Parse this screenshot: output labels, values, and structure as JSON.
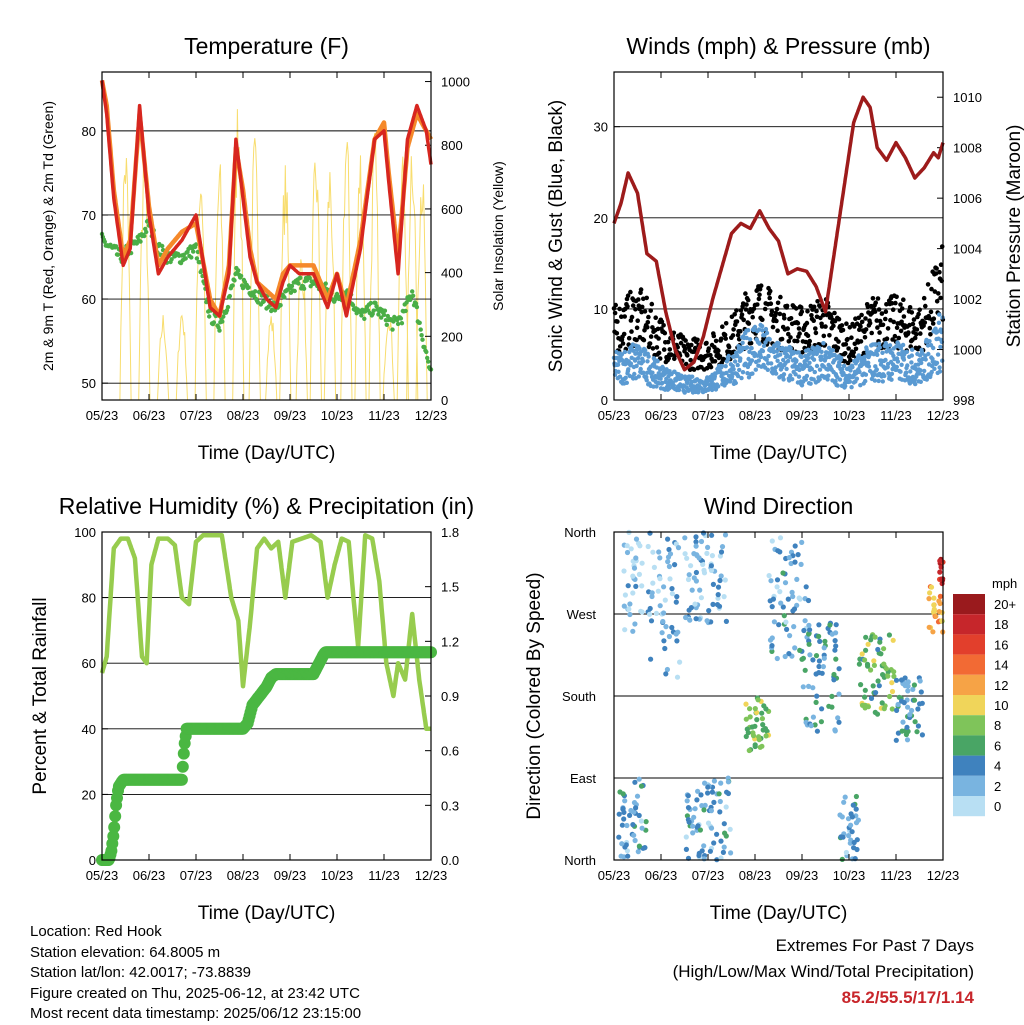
{
  "chart_data": [
    {
      "type": "line",
      "title": "Temperature (F)",
      "xlabel": "Time (Day/UTC)",
      "ylabel": "2m & 9m T (Red, Orange) & 2m Td (Green)",
      "y2label": "Solar Insolation (Yellow)",
      "ylim": [
        48,
        87
      ],
      "y2lim": [
        0,
        1030
      ],
      "xticks": [
        "05/23",
        "06/23",
        "07/23",
        "08/23",
        "09/23",
        "10/23",
        "11/23",
        "12/23"
      ],
      "yticks": [
        50,
        60,
        70,
        80
      ],
      "y2ticks": [
        0,
        200,
        400,
        600,
        800,
        1000
      ],
      "grid": true,
      "colors": {
        "t2m": "#d7261f",
        "t9m": "#f5892a",
        "td2m": "#4aae46",
        "solar": "#f8dd6e"
      },
      "series": [
        {
          "name": "2m T",
          "x": [
            0,
            0.1,
            0.25,
            0.45,
            0.6,
            0.8,
            1.0,
            1.2,
            1.4,
            1.7,
            2.0,
            2.3,
            2.5,
            2.7,
            2.85,
            3.0,
            3.15,
            3.3,
            3.5,
            3.7,
            3.85,
            4.0,
            4.2,
            4.5,
            4.8,
            5.0,
            5.2,
            5.5,
            5.8,
            6.0,
            6.1,
            6.3,
            6.5,
            6.7,
            6.9,
            7.0
          ],
          "values": [
            86,
            82,
            72,
            64,
            66,
            83,
            70,
            63,
            65,
            67,
            70,
            59,
            58,
            63,
            79,
            72,
            65,
            62,
            60,
            59,
            62,
            64,
            63,
            63,
            59,
            63,
            58,
            66,
            79,
            80,
            74,
            63,
            79,
            83,
            80,
            76
          ]
        },
        {
          "name": "9m T",
          "x": [
            0,
            0.1,
            0.25,
            0.45,
            0.6,
            0.8,
            1.0,
            1.2,
            1.4,
            1.7,
            2.0,
            2.3,
            2.5,
            2.7,
            2.85,
            3.0,
            3.15,
            3.3,
            3.5,
            3.7,
            3.85,
            4.0,
            4.2,
            4.5,
            4.8,
            5.0,
            5.2,
            5.5,
            5.8,
            6.0,
            6.1,
            6.3,
            6.5,
            6.7,
            6.9,
            7.0
          ],
          "values": [
            86,
            83,
            73,
            65,
            67,
            82,
            71,
            64,
            66,
            68,
            69,
            60,
            58,
            64,
            78,
            73,
            66,
            62,
            61,
            60,
            63,
            64,
            64,
            64,
            60,
            63,
            59,
            67,
            79,
            81,
            75,
            65,
            78,
            82,
            80,
            79
          ]
        },
        {
          "name": "2m Td",
          "x": [
            0,
            0.2,
            0.4,
            0.6,
            0.8,
            1.0,
            1.2,
            1.4,
            1.7,
            2.0,
            2.3,
            2.5,
            2.7,
            2.85,
            3.0,
            3.2,
            3.4,
            3.7,
            4.0,
            4.2,
            4.5,
            4.8,
            5.0,
            5.2,
            5.5,
            5.8,
            6.0,
            6.2,
            6.4,
            6.6,
            6.8,
            7.0
          ],
          "values": [
            67,
            66,
            65,
            66,
            67,
            69,
            66,
            65,
            65,
            66,
            58,
            57,
            60,
            63,
            62,
            61,
            60,
            59,
            61,
            62,
            62,
            61,
            60,
            61,
            58,
            59,
            58,
            57,
            58,
            61,
            56,
            51
          ]
        }
      ],
      "solar_days": [
        0.5,
        0.9,
        1.3,
        1.7,
        2.1,
        2.5,
        2.9,
        3.25,
        3.6,
        3.9,
        4.25,
        4.55,
        4.85,
        5.2,
        5.5,
        5.8,
        6.1,
        6.4,
        6.6,
        6.8
      ],
      "solar_peaks": [
        850,
        830,
        280,
        310,
        800,
        780,
        1000,
        850,
        290,
        760,
        500,
        830,
        780,
        900,
        830,
        860,
        320,
        820,
        900,
        800
      ]
    },
    {
      "type": "scatter",
      "title": "Winds (mph) & Pressure (mb)",
      "xlabel": "Time (Day/UTC)",
      "ylabel": "Sonic Wind & Gust (Blue, Black)",
      "y2label": "Station Pressure (Maroon)",
      "ylim": [
        0,
        36
      ],
      "y2lim": [
        998,
        1011
      ],
      "xticks": [
        "05/23",
        "06/23",
        "07/23",
        "08/23",
        "09/23",
        "10/23",
        "11/23",
        "12/23"
      ],
      "yticks": [
        0,
        10,
        20,
        30
      ],
      "y2ticks": [
        998,
        1000,
        1002,
        1004,
        1006,
        1008,
        1010
      ],
      "grid": true,
      "colors": {
        "wind": "#5a9ad2",
        "gust": "#000000",
        "pressure": "#9d1b1b"
      },
      "pressure": {
        "x": [
          0,
          0.15,
          0.3,
          0.5,
          0.7,
          0.9,
          1.1,
          1.3,
          1.5,
          1.7,
          1.9,
          2.1,
          2.3,
          2.5,
          2.7,
          2.9,
          3.1,
          3.3,
          3.5,
          3.7,
          3.9,
          4.1,
          4.3,
          4.5,
          4.7,
          4.9,
          5.1,
          5.3,
          5.45,
          5.6,
          5.8,
          6.0,
          6.2,
          6.4,
          6.6,
          6.8,
          6.9,
          7.0
        ],
        "values": [
          1005,
          1005.8,
          1007,
          1006.2,
          1003.8,
          1003.5,
          1001.5,
          1000,
          999.2,
          999.5,
          1000.5,
          1002,
          1003.3,
          1004.6,
          1005,
          1004.8,
          1005.5,
          1004.8,
          1004.3,
          1003,
          1003.2,
          1003.1,
          1002.5,
          1001.5,
          1004,
          1006.5,
          1009,
          1010,
          1009.6,
          1008,
          1007.5,
          1008.2,
          1007.6,
          1006.8,
          1007.2,
          1007.8,
          1007.6,
          1008.2
        ]
      },
      "wind_envelope": {
        "x": [
          0,
          0.5,
          1.0,
          1.5,
          2.0,
          2.5,
          3.0,
          3.5,
          4.0,
          4.5,
          5.0,
          5.5,
          6.0,
          6.5,
          7.0
        ],
        "mean": [
          4,
          5,
          3,
          2,
          2,
          4,
          7,
          5,
          4,
          5,
          3,
          5,
          5,
          4,
          8
        ],
        "gust": [
          9,
          11,
          8,
          6,
          6,
          8,
          12,
          10,
          9,
          10,
          7,
          10,
          10,
          9,
          15
        ]
      }
    },
    {
      "type": "line",
      "title": "Relative Humidity (%) & Precipitation (in)",
      "xlabel": "Time (Day/UTC)",
      "ylabel": "Percent & Total Rainfall",
      "ylim": [
        0,
        100
      ],
      "y2lim": [
        0,
        1.8
      ],
      "xticks": [
        "05/23",
        "06/23",
        "07/23",
        "08/23",
        "09/23",
        "10/23",
        "11/23",
        "12/23"
      ],
      "yticks": [
        0,
        20,
        40,
        60,
        80,
        100
      ],
      "y2ticks": [
        "0.0",
        "0.3",
        "0.6",
        "0.9",
        "1.2",
        "1.5",
        "1.8"
      ],
      "grid": true,
      "colors": {
        "rh": "#97cc4e",
        "precip": "#4ab742"
      },
      "series": [
        {
          "name": "RH",
          "x": [
            0,
            0.1,
            0.25,
            0.4,
            0.55,
            0.7,
            0.85,
            0.95,
            1.05,
            1.2,
            1.4,
            1.55,
            1.7,
            1.85,
            2.0,
            2.15,
            2.35,
            2.55,
            2.75,
            2.9,
            3.0,
            3.15,
            3.3,
            3.45,
            3.6,
            3.75,
            3.9,
            4.05,
            4.25,
            4.45,
            4.65,
            4.8,
            4.95,
            5.1,
            5.25,
            5.35,
            5.45,
            5.6,
            5.75,
            5.9,
            6.05,
            6.2,
            6.3,
            6.45,
            6.6,
            6.75,
            6.9,
            7.0
          ],
          "values": [
            57,
            62,
            95,
            98,
            98,
            92,
            62,
            60,
            90,
            98,
            98,
            96,
            80,
            78,
            97,
            99,
            99,
            99,
            80,
            73,
            53,
            72,
            95,
            98,
            95,
            97,
            80,
            97,
            98,
            99,
            97,
            80,
            90,
            98,
            97,
            80,
            65,
            99,
            98,
            85,
            60,
            50,
            60,
            55,
            75,
            55,
            40,
            40
          ]
        },
        {
          "name": "Total Rainfall",
          "x": [
            0,
            0.15,
            0.2,
            0.25,
            0.3,
            0.35,
            0.45,
            1.0,
            1.5,
            1.7,
            1.75,
            1.8,
            2.5,
            3.0,
            3.1,
            3.2,
            3.35,
            3.5,
            3.6,
            3.7,
            4.0,
            4.5,
            4.7,
            4.75,
            5.0,
            6.0,
            7.0
          ],
          "values": [
            0,
            0,
            0.05,
            0.15,
            0.3,
            0.4,
            0.44,
            0.44,
            0.44,
            0.44,
            0.62,
            0.72,
            0.72,
            0.72,
            0.75,
            0.85,
            0.9,
            0.95,
            1.0,
            1.02,
            1.02,
            1.02,
            1.12,
            1.14,
            1.14,
            1.14,
            1.14
          ]
        }
      ]
    },
    {
      "type": "scatter",
      "title": "Wind Direction",
      "xlabel": "Time (Day/UTC)",
      "ylabel": "Direction (Colored By Speed)",
      "yticks": [
        "North",
        "East",
        "South",
        "West",
        "North"
      ],
      "xticks": [
        "05/23",
        "06/23",
        "07/23",
        "08/23",
        "09/23",
        "10/23",
        "11/23",
        "12/23"
      ],
      "grid": true,
      "legend_title": "mph",
      "legend_labels": [
        "20+",
        "18",
        "16",
        "14",
        "12",
        "10",
        "8",
        "6",
        "4",
        "2",
        "0"
      ],
      "legend_colors": [
        "#9a1a1d",
        "#c6262b",
        "#e23f2c",
        "#f26a34",
        "#f6a346",
        "#f0d55a",
        "#7fc45a",
        "#49a565",
        "#3f82be",
        "#79b4e0",
        "#b8dff3"
      ],
      "clusters": [
        {
          "x0": 0.1,
          "x1": 0.7,
          "dir0": 0,
          "dir1": 90,
          "speed": 3
        },
        {
          "x0": 0.2,
          "x1": 0.6,
          "dir0": 250,
          "dir1": 360,
          "speed": 1
        },
        {
          "x0": 0.7,
          "x1": 1.4,
          "dir0": 200,
          "dir1": 360,
          "speed": 2
        },
        {
          "x0": 1.5,
          "x1": 2.5,
          "dir0": 0,
          "dir1": 90,
          "speed": 3
        },
        {
          "x0": 1.5,
          "x1": 2.4,
          "dir0": 260,
          "dir1": 360,
          "speed": 2
        },
        {
          "x0": 2.8,
          "x1": 3.3,
          "dir0": 120,
          "dir1": 180,
          "speed": 7
        },
        {
          "x0": 3.3,
          "x1": 4.2,
          "dir0": 220,
          "dir1": 360,
          "speed": 3
        },
        {
          "x0": 4.0,
          "x1": 4.8,
          "dir0": 140,
          "dir1": 260,
          "speed": 4
        },
        {
          "x0": 4.8,
          "x1": 5.2,
          "dir0": 0,
          "dir1": 70,
          "speed": 3
        },
        {
          "x0": 5.2,
          "x1": 6.0,
          "dir0": 160,
          "dir1": 250,
          "speed": 7
        },
        {
          "x0": 6.0,
          "x1": 6.6,
          "dir0": 130,
          "dir1": 200,
          "speed": 4
        },
        {
          "x0": 6.7,
          "x1": 7.0,
          "dir0": 250,
          "dir1": 300,
          "speed": 11
        },
        {
          "x0": 6.9,
          "x1": 7.0,
          "dir0": 300,
          "dir1": 330,
          "speed": 18
        }
      ]
    }
  ],
  "station": {
    "location": "Location: Red Hook",
    "elevation": "Station elevation: 64.8005 m",
    "latlon": "Station lat/lon: 42.0017; -73.8839",
    "created": "Figure created on Thu, 2025-06-12, at 23:42 UTC",
    "recent": "Most recent data timestamp: 2025/06/12 23:15:00"
  },
  "extremes": {
    "title": "Extremes For Past 7 Days",
    "subtitle": "(High/Low/Max Wind/Total Precipitation)",
    "values": "85.2/55.5/17/1.14"
  }
}
